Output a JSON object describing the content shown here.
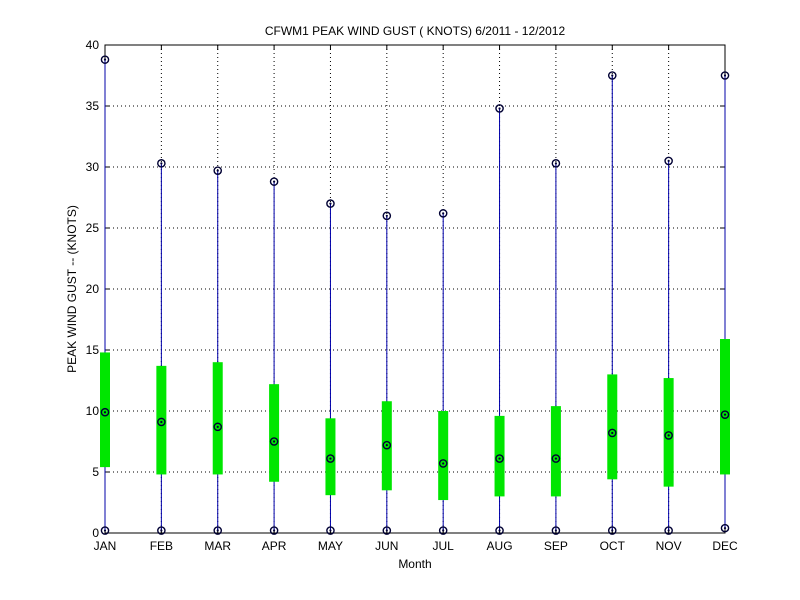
{
  "chart_data": {
    "type": "box",
    "title": "CFWM1  PEAK WIND GUST ( KNOTS) 6/2011 - 12/2012",
    "xlabel": "Month",
    "ylabel": "PEAK WIND GUST -- (KNOTS)",
    "ylim": [
      0,
      40
    ],
    "yticks": [
      0,
      5,
      10,
      15,
      20,
      25,
      30,
      35,
      40
    ],
    "grid": true,
    "categories": [
      "JAN",
      "FEB",
      "MAR",
      "APR",
      "MAY",
      "JUN",
      "JUL",
      "AUG",
      "SEP",
      "OCT",
      "NOV",
      "DEC"
    ],
    "max": [
      38.8,
      30.3,
      29.7,
      28.8,
      27.0,
      26.0,
      26.2,
      34.8,
      30.3,
      37.5,
      30.5,
      37.5
    ],
    "q3": [
      14.8,
      13.7,
      14.0,
      12.2,
      9.4,
      10.8,
      10.0,
      9.6,
      10.4,
      13.0,
      12.7,
      15.9
    ],
    "median": [
      9.9,
      9.1,
      8.7,
      7.5,
      6.1,
      7.2,
      5.7,
      6.1,
      6.1,
      8.2,
      8.0,
      9.7
    ],
    "q1": [
      5.4,
      4.8,
      4.8,
      4.2,
      3.1,
      3.5,
      2.7,
      3.0,
      3.0,
      4.4,
      3.8,
      4.8
    ],
    "min": [
      0.2,
      0.2,
      0.2,
      0.2,
      0.2,
      0.2,
      0.2,
      0.2,
      0.2,
      0.2,
      0.2,
      0.4
    ],
    "colors": {
      "box": "#00e600",
      "whisker": "#0000aa",
      "marker": "#000033",
      "grid": "#000000",
      "axes": "#000000"
    }
  }
}
